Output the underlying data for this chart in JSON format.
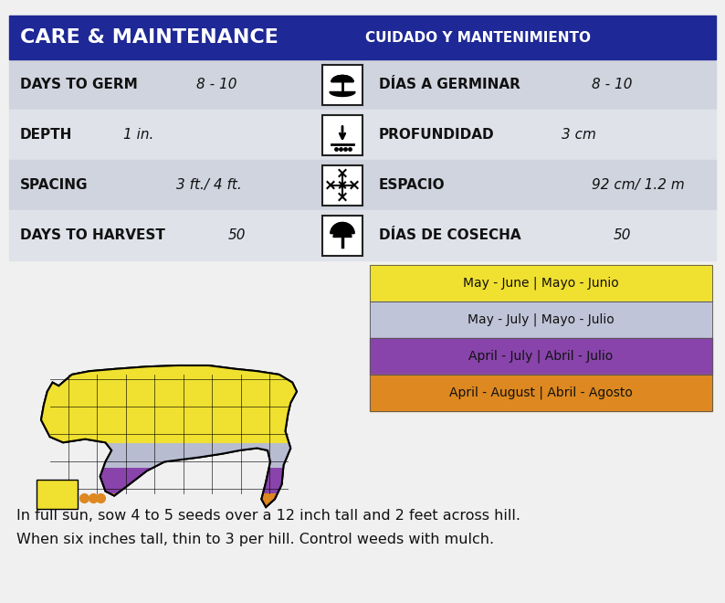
{
  "title_left": "CARE & MAINTENANCE",
  "title_right": "CUIDADO Y MANTENIMIENTO",
  "header_bg": "#1e2896",
  "header_text_color": "#ffffff",
  "bg_color": "#e8eaf0",
  "row_colors_alt": [
    "#d0d4de",
    "#e0e2ea"
  ],
  "rows": [
    {
      "left_label": "DAYS TO GERM",
      "left_value": "8 - 10",
      "right_label": "DÍAS A GERMINAR",
      "right_value": "8 - 10",
      "icon": "germ"
    },
    {
      "left_label": "DEPTH",
      "left_value": "1 in.",
      "right_label": "PROFUNDIDAD",
      "right_value": "3 cm",
      "icon": "depth"
    },
    {
      "left_label": "SPACING",
      "left_value": "3 ft./ 4 ft.",
      "right_label": "ESPACIO",
      "right_value": "92 cm/ 1.2 m",
      "icon": "spacing"
    },
    {
      "left_label": "DAYS TO HARVEST",
      "left_value": "50",
      "right_label": "DÍAS DE COSECHA",
      "right_value": "50",
      "icon": "harvest"
    }
  ],
  "planting_zones": [
    {
      "label": "May - June | Mayo - Junio",
      "color": "#f0e030"
    },
    {
      "label": "May - July | Mayo - Julio",
      "color": "#c0c4d8"
    },
    {
      "label": "April - July | Abril - Julio",
      "color": "#8844aa"
    },
    {
      "label": "April - August | Abril - Agosto",
      "color": "#dd8820"
    }
  ],
  "footer_line1": "In full sun, sow 4 to 5 seeds over a 12 inch tall and 2 feet across hill.",
  "footer_line2": "When six inches tall, thin to 3 per hill. Control weeds with mulch.",
  "map_colors": {
    "yellow": "#f0e030",
    "lavender": "#b8bcd0",
    "purple": "#8844aa",
    "orange": "#dd8820"
  }
}
